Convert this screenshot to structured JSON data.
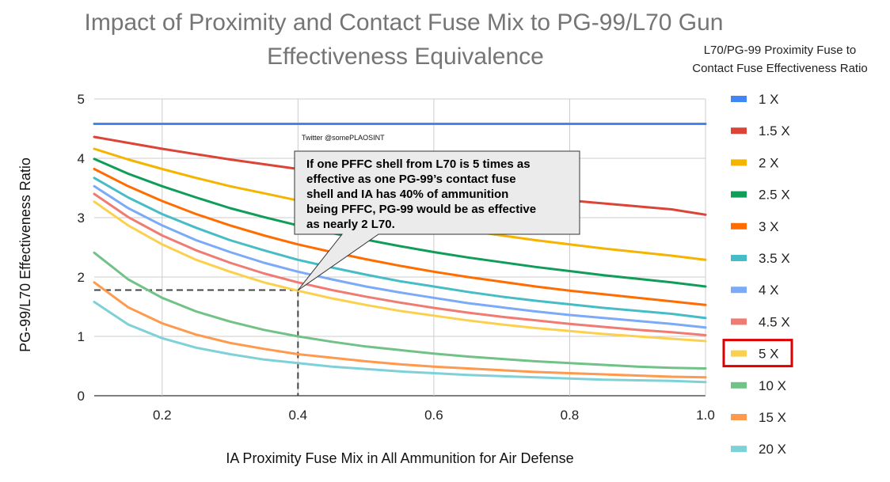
{
  "chart_data": {
    "type": "line",
    "title_lines": [
      "Impact of Proximity and Contact Fuse Mix to PG-99/L70 Gun",
      "Effectiveness Equivalence"
    ],
    "xlabel": "IA Proximity Fuse Mix in All Ammunition for Air Defense",
    "ylabel": "PG-99/L70 Effectiveness Ratio",
    "xlim": [
      0.1,
      1.0
    ],
    "ylim": [
      0,
      5
    ],
    "x_ticks": [
      "0.2",
      "0.4",
      "0.6",
      "0.8",
      "1.0"
    ],
    "y_ticks": [
      "0",
      "1",
      "2",
      "3",
      "4",
      "5"
    ],
    "grid": true,
    "legend_position": "right",
    "legend_title_lines": [
      "L70/PG-99 Proximity Fuse to",
      "Contact Fuse Effectiveness Ratio"
    ],
    "highlighted_series": "5 X",
    "x": [
      0.1,
      0.15,
      0.2,
      0.25,
      0.3,
      0.35,
      0.4,
      0.45,
      0.5,
      0.55,
      0.6,
      0.65,
      0.7,
      0.75,
      0.8,
      0.85,
      0.9,
      0.95,
      1.0
    ],
    "series": [
      {
        "name": "1 X",
        "color": "#4285f4",
        "values": [
          4.58,
          4.58,
          4.58,
          4.58,
          4.58,
          4.58,
          4.58,
          4.58,
          4.58,
          4.58,
          4.58,
          4.58,
          4.58,
          4.58,
          4.58,
          4.58,
          4.58,
          4.58,
          4.58
        ]
      },
      {
        "name": "1.5 X",
        "color": "#db4437",
        "values": [
          4.36,
          4.26,
          4.16,
          4.07,
          3.98,
          3.9,
          3.82,
          3.74,
          3.67,
          3.6,
          3.53,
          3.47,
          3.41,
          3.35,
          3.29,
          3.24,
          3.19,
          3.14,
          3.05
        ]
      },
      {
        "name": "2 X",
        "color": "#f4b400",
        "values": [
          4.16,
          3.98,
          3.82,
          3.67,
          3.53,
          3.41,
          3.29,
          3.19,
          3.05,
          2.96,
          2.86,
          2.78,
          2.7,
          2.62,
          2.55,
          2.48,
          2.42,
          2.36,
          2.29
        ]
      },
      {
        "name": "2.5 X",
        "color": "#0f9d58",
        "values": [
          3.99,
          3.74,
          3.53,
          3.34,
          3.16,
          3.01,
          2.87,
          2.74,
          2.63,
          2.52,
          2.42,
          2.33,
          2.25,
          2.17,
          2.1,
          2.03,
          1.97,
          1.91,
          1.84
        ]
      },
      {
        "name": "3 X",
        "color": "#ff6d01",
        "values": [
          3.82,
          3.53,
          3.28,
          3.06,
          2.87,
          2.7,
          2.55,
          2.42,
          2.3,
          2.19,
          2.09,
          2.0,
          1.92,
          1.84,
          1.77,
          1.71,
          1.65,
          1.59,
          1.53
        ]
      },
      {
        "name": "3.5 X",
        "color": "#46bdc6",
        "values": [
          3.67,
          3.34,
          3.06,
          2.83,
          2.62,
          2.45,
          2.29,
          2.16,
          2.04,
          1.93,
          1.84,
          1.75,
          1.67,
          1.6,
          1.54,
          1.48,
          1.43,
          1.38,
          1.31
        ]
      },
      {
        "name": "4 X",
        "color": "#7baaf7",
        "values": [
          3.53,
          3.16,
          2.87,
          2.62,
          2.42,
          2.24,
          2.09,
          1.96,
          1.84,
          1.74,
          1.65,
          1.56,
          1.49,
          1.42,
          1.36,
          1.31,
          1.26,
          1.21,
          1.15
        ]
      },
      {
        "name": "4.5 X",
        "color": "#f07b72",
        "values": [
          3.4,
          3.01,
          2.7,
          2.45,
          2.24,
          2.06,
          1.91,
          1.78,
          1.67,
          1.57,
          1.48,
          1.4,
          1.33,
          1.27,
          1.21,
          1.16,
          1.11,
          1.07,
          1.02
        ]
      },
      {
        "name": "5 X",
        "color": "#fcd04f",
        "values": [
          3.27,
          2.87,
          2.55,
          2.29,
          2.09,
          1.91,
          1.77,
          1.64,
          1.53,
          1.43,
          1.35,
          1.27,
          1.2,
          1.14,
          1.09,
          1.04,
          1.0,
          0.96,
          0.92
        ]
      },
      {
        "name": "10 X",
        "color": "#71c287",
        "values": [
          2.41,
          1.96,
          1.65,
          1.42,
          1.25,
          1.11,
          1.0,
          0.91,
          0.83,
          0.77,
          0.71,
          0.66,
          0.62,
          0.58,
          0.55,
          0.52,
          0.49,
          0.47,
          0.46
        ]
      },
      {
        "name": "15 X",
        "color": "#ff994d",
        "values": [
          1.91,
          1.49,
          1.22,
          1.03,
          0.89,
          0.79,
          0.7,
          0.64,
          0.58,
          0.53,
          0.49,
          0.46,
          0.43,
          0.4,
          0.38,
          0.36,
          0.34,
          0.32,
          0.31
        ]
      },
      {
        "name": "20 X",
        "color": "#7ed1d7",
        "values": [
          1.58,
          1.2,
          0.97,
          0.81,
          0.7,
          0.61,
          0.55,
          0.49,
          0.45,
          0.41,
          0.38,
          0.35,
          0.33,
          0.31,
          0.29,
          0.27,
          0.26,
          0.25,
          0.23
        ]
      }
    ],
    "reference_point": {
      "x": 0.4,
      "y": 1.78
    },
    "callout_lines": [
      "If one PFFC shell from L70 is 5 times as",
      "effective as one PG-99’s contact fuse",
      "shell and IA has 40% of ammunition",
      "being PFFC, PG-99 would be as effective",
      "as nearly 2 L70."
    ],
    "watermark": "Twitter @somePLAOSINT"
  }
}
